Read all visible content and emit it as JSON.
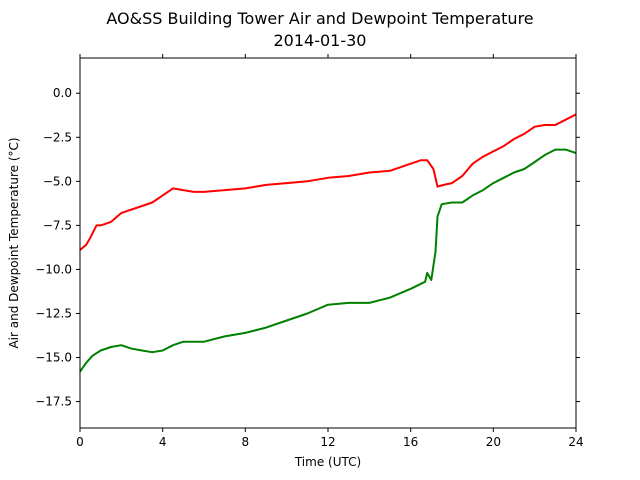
{
  "chart_data": {
    "type": "line",
    "title": "AO&SS Building Tower Air and Dewpoint Temperature",
    "subtitle": "2014-01-30",
    "xlabel": "Time (UTC)",
    "ylabel": "Air and Dewpoint Temperature (°C)",
    "xlim": [
      0,
      24
    ],
    "ylim": [
      -19,
      2
    ],
    "x_ticks": [
      0,
      4,
      8,
      12,
      16,
      20,
      24
    ],
    "x_tick_labels": [
      "0",
      "4",
      "8",
      "12",
      "16",
      "20",
      "24"
    ],
    "y_ticks": [
      0.0,
      -2.5,
      -5.0,
      -7.5,
      -10.0,
      -12.5,
      -15.0,
      -17.5
    ],
    "y_tick_labels": [
      "0.0",
      "−2.5",
      "−5.0",
      "−7.5",
      "−10.0",
      "−12.5",
      "−15.0",
      "−17.5"
    ],
    "grid": false,
    "series": [
      {
        "color": "#ff0000",
        "x": [
          0,
          0.3,
          0.5,
          0.8,
          1.0,
          1.5,
          2.0,
          2.5,
          3.0,
          3.5,
          4.0,
          4.5,
          5.0,
          5.5,
          6.0,
          7.0,
          8.0,
          9.0,
          10.0,
          11.0,
          12.0,
          13.0,
          14.0,
          15.0,
          16.0,
          16.5,
          16.8,
          17.1,
          17.3,
          17.6,
          18.0,
          18.5,
          19.0,
          19.5,
          20.0,
          20.5,
          21.0,
          21.5,
          22.0,
          22.5,
          23.0,
          23.5,
          24.0
        ],
        "y": [
          -8.9,
          -8.6,
          -8.2,
          -7.5,
          -7.5,
          -7.3,
          -6.8,
          -6.6,
          -6.4,
          -6.2,
          -5.8,
          -5.4,
          -5.5,
          -5.6,
          -5.6,
          -5.5,
          -5.4,
          -5.2,
          -5.1,
          -5.0,
          -4.8,
          -4.7,
          -4.5,
          -4.4,
          -4.0,
          -3.8,
          -3.8,
          -4.3,
          -5.3,
          -5.2,
          -5.1,
          -4.7,
          -4.0,
          -3.6,
          -3.3,
          -3.0,
          -2.6,
          -2.3,
          -1.9,
          -1.8,
          -1.8,
          -1.5,
          -1.2
        ]
      },
      {
        "color": "#008000",
        "x": [
          0,
          0.3,
          0.6,
          1.0,
          1.5,
          2.0,
          2.5,
          3.0,
          3.5,
          4.0,
          4.5,
          5.0,
          5.5,
          6.0,
          7.0,
          8.0,
          9.0,
          10.0,
          11.0,
          12.0,
          13.0,
          14.0,
          15.0,
          16.0,
          16.7,
          16.8,
          17.0,
          17.2,
          17.3,
          17.5,
          18.0,
          18.5,
          19.0,
          19.5,
          20.0,
          20.5,
          21.0,
          21.5,
          22.0,
          22.5,
          23.0,
          23.5,
          24.0
        ],
        "y": [
          -15.8,
          -15.3,
          -14.9,
          -14.6,
          -14.4,
          -14.3,
          -14.5,
          -14.6,
          -14.7,
          -14.6,
          -14.3,
          -14.1,
          -14.1,
          -14.1,
          -13.8,
          -13.6,
          -13.3,
          -12.9,
          -12.5,
          -12.0,
          -11.9,
          -11.9,
          -11.6,
          -11.1,
          -10.7,
          -10.2,
          -10.6,
          -9.0,
          -7.0,
          -6.3,
          -6.2,
          -6.2,
          -5.8,
          -5.5,
          -5.1,
          -4.8,
          -4.5,
          -4.3,
          -3.9,
          -3.5,
          -3.2,
          -3.2,
          -3.4
        ]
      }
    ]
  }
}
